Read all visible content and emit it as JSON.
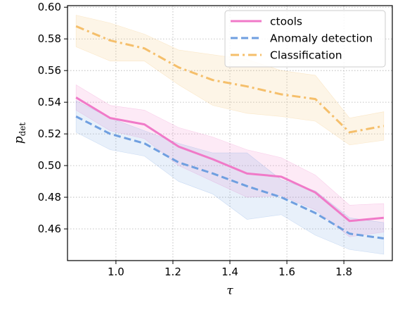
{
  "chart_data": {
    "type": "line",
    "title": "",
    "xlabel": "τ",
    "ylabel_main": "p",
    "ylabel_sub": "det",
    "xlim": [
      0.83,
      1.97
    ],
    "ylim": [
      0.44,
      0.601
    ],
    "xticks": [
      1.0,
      1.2,
      1.4,
      1.6,
      1.8
    ],
    "xtick_labels": [
      "1.0",
      "1.2",
      "1.4",
      "1.6",
      "1.8"
    ],
    "yticks": [
      0.46,
      0.48,
      0.5,
      0.52,
      0.54,
      0.56,
      0.58,
      0.6
    ],
    "ytick_labels": [
      "0.46",
      "0.48",
      "0.50",
      "0.52",
      "0.54",
      "0.56",
      "0.58",
      "0.60"
    ],
    "grid": true,
    "legend_position": "top-right",
    "x": [
      0.86,
      0.98,
      1.1,
      1.22,
      1.34,
      1.46,
      1.58,
      1.7,
      1.82,
      1.94
    ],
    "series": [
      {
        "name": "ctools",
        "color": "#f07ac8",
        "dash": "solid",
        "values": [
          0.543,
          0.53,
          0.526,
          0.512,
          0.504,
          0.495,
          0.493,
          0.483,
          0.465,
          0.467
        ],
        "lower": [
          0.535,
          0.522,
          0.517,
          0.5,
          0.49,
          0.48,
          0.481,
          0.472,
          0.455,
          0.458
        ],
        "upper": [
          0.551,
          0.538,
          0.535,
          0.524,
          0.518,
          0.51,
          0.505,
          0.494,
          0.475,
          0.476
        ]
      },
      {
        "name": "Anomaly detection",
        "color": "#6f9fe0",
        "dash": "dashed",
        "values": [
          0.531,
          0.52,
          0.514,
          0.502,
          0.495,
          0.487,
          0.48,
          0.47,
          0.457,
          0.454
        ],
        "lower": [
          0.521,
          0.51,
          0.506,
          0.49,
          0.482,
          0.466,
          0.469,
          0.456,
          0.447,
          0.444
        ],
        "upper": [
          0.541,
          0.53,
          0.522,
          0.514,
          0.508,
          0.508,
          0.491,
          0.484,
          0.467,
          0.464
        ]
      },
      {
        "name": "Classification",
        "color": "#f5bf6b",
        "dash": "dashdot",
        "values": [
          0.588,
          0.579,
          0.574,
          0.562,
          0.554,
          0.55,
          0.545,
          0.542,
          0.521,
          0.525
        ],
        "lower": [
          0.575,
          0.566,
          0.566,
          0.551,
          0.538,
          0.533,
          0.531,
          0.528,
          0.513,
          0.516
        ],
        "upper": [
          0.595,
          0.59,
          0.583,
          0.573,
          0.57,
          0.567,
          0.56,
          0.557,
          0.53,
          0.534
        ]
      }
    ]
  }
}
